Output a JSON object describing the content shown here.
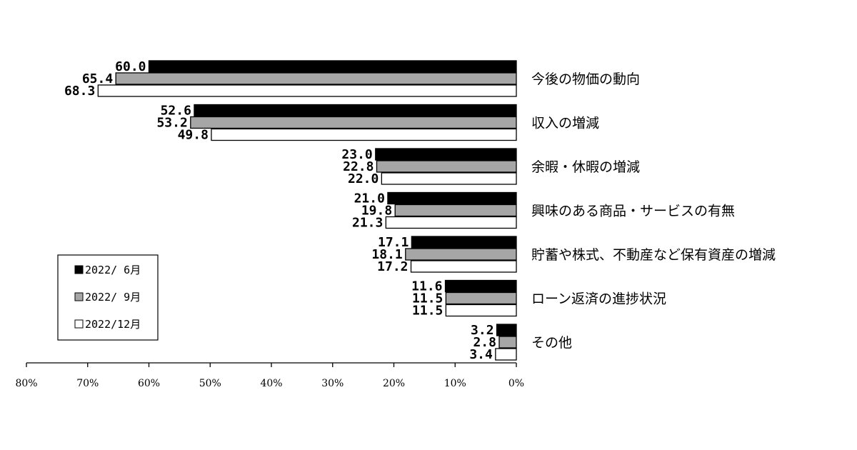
{
  "chart_data": {
    "type": "bar",
    "orientation": "horizontal",
    "direction": "right-to-left",
    "categories": [
      "今後の物価の動向",
      "収入の増減",
      "余暇・休暇の増減",
      "興味のある商品・サービスの有無",
      "貯蓄や株式、不動産など保有資産の増減",
      "ローン返済の進捗状況",
      "その他"
    ],
    "series": [
      {
        "name": "2022/ 6月",
        "color": "#000000",
        "values": [
          60.0,
          52.6,
          23.0,
          21.0,
          17.1,
          11.6,
          3.2
        ]
      },
      {
        "name": "2022/ 9月",
        "color": "#a6a6a6",
        "values": [
          65.4,
          53.2,
          22.8,
          19.8,
          18.1,
          11.5,
          2.8
        ]
      },
      {
        "name": "2022/12月",
        "color": "#ffffff",
        "values": [
          68.3,
          49.8,
          22.0,
          21.3,
          17.2,
          11.5,
          3.4
        ]
      }
    ],
    "value_labels": [
      [
        "60.0",
        "52.6",
        "23.0",
        "21.0",
        "17.1",
        "11.6",
        "3.2"
      ],
      [
        "65.4",
        "53.2",
        "22.8",
        "19.8",
        "18.1",
        "11.5",
        "2.8"
      ],
      [
        "68.3",
        "49.8",
        "22.0",
        "21.3",
        "17.2",
        "11.5",
        "3.4"
      ]
    ],
    "xlim": [
      0,
      80
    ],
    "xticks": [
      "80%",
      "70%",
      "60%",
      "50%",
      "40%",
      "30%",
      "20%",
      "10%",
      "0%"
    ],
    "legend_position": "bottom-left",
    "grid": false,
    "title": "",
    "xlabel": "",
    "ylabel": ""
  }
}
